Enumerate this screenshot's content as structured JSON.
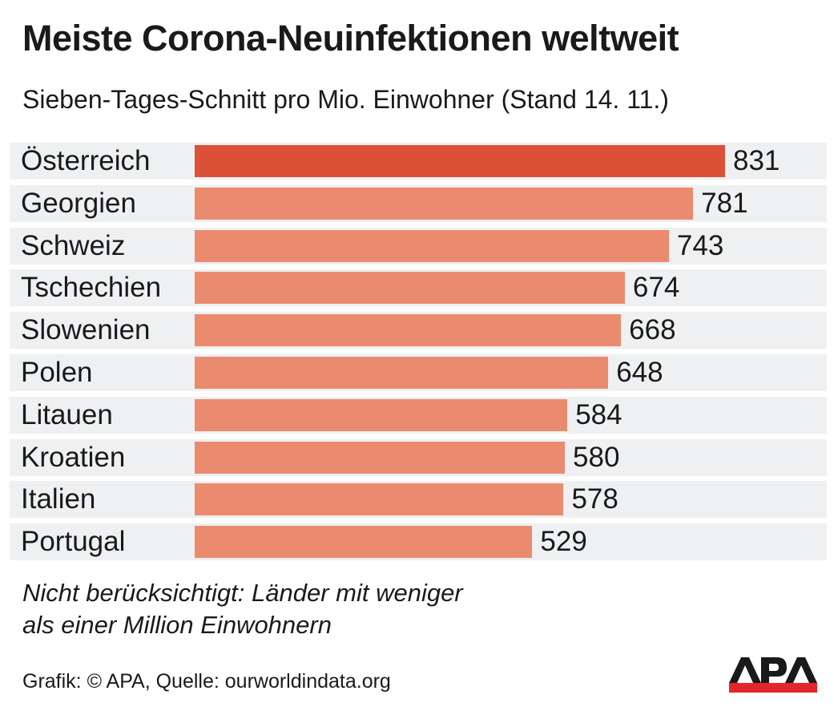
{
  "chart_data": {
    "type": "bar",
    "orientation": "horizontal",
    "title": "Meiste Corona-Neuinfektionen weltweit",
    "subtitle": "Sieben-Tages-Schnitt pro Mio. Einwohner (Stand 14. 11.)",
    "categories": [
      "Österreich",
      "Georgien",
      "Schweiz",
      "Tschechien",
      "Slowenien",
      "Polen",
      "Litauen",
      "Kroatien",
      "Italien",
      "Portugal"
    ],
    "values": [
      831,
      781,
      743,
      674,
      668,
      648,
      584,
      580,
      578,
      529
    ],
    "colors": {
      "highlight": "#dc5038",
      "default": "#ea8b70",
      "row_background": "#eff0f1"
    },
    "highlight_index": 0,
    "xlim": [
      0,
      831
    ],
    "grid": false,
    "note": [
      "Nicht berücksichtigt: Länder mit weniger",
      "als einer Million Einwohnern"
    ],
    "credit": "Grafik: © APA, Quelle: ourworldindata.org"
  },
  "logo": {
    "text": "APA",
    "colors": {
      "text": "#1a1a1a",
      "bar": "#e3262b"
    }
  }
}
